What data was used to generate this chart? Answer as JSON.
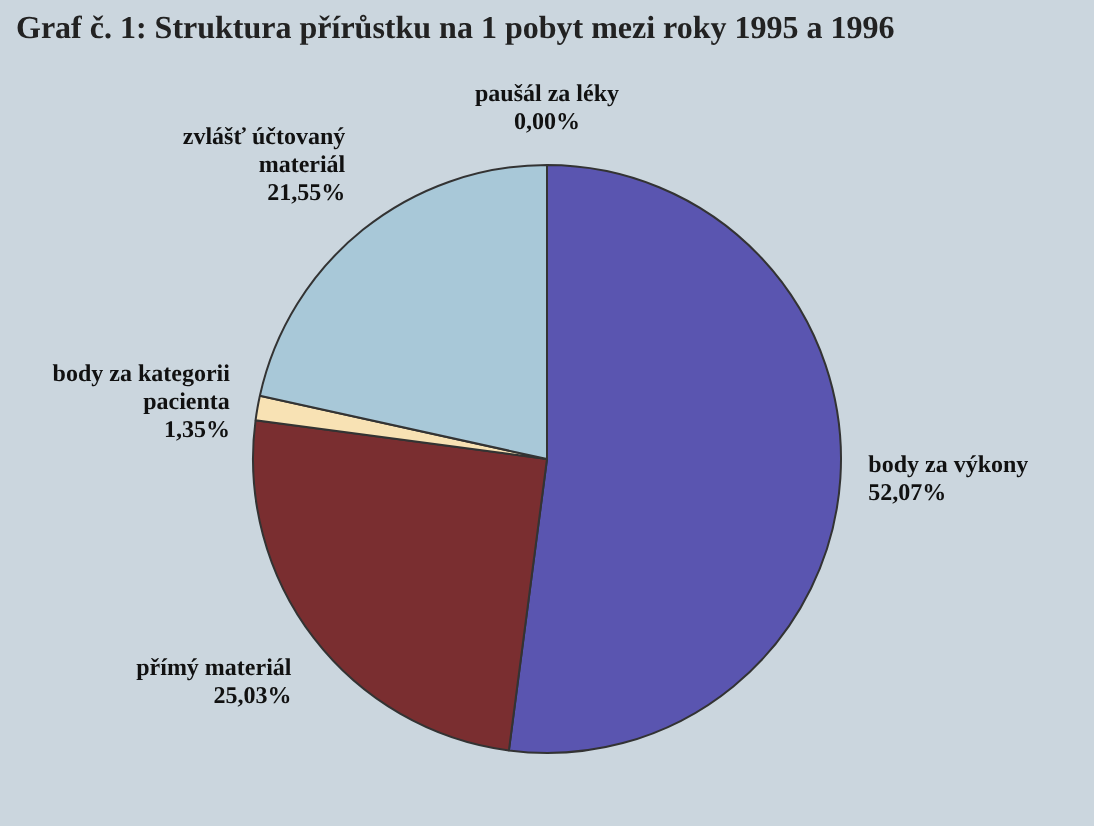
{
  "chart_data": {
    "type": "pie",
    "title": "Graf č. 1: Struktura přírůstku na 1 pobyt mezi roky 1995 a 1996",
    "categories": [
      "body za výkony",
      "přímý materiál",
      "body za kategorii pacienta",
      "zvlášť účtovaný materiál",
      "paušál za léky"
    ],
    "values": [
      52.07,
      25.03,
      1.35,
      21.55,
      0.0
    ],
    "value_labels": [
      "52,07%",
      "25,03%",
      "1,35%",
      "21,55%",
      "0,00%"
    ],
    "colors": [
      "#5a55b0",
      "#7a2e30",
      "#f8e2b4",
      "#a8c8d8",
      "#c0c0c0"
    ],
    "legend": false
  }
}
